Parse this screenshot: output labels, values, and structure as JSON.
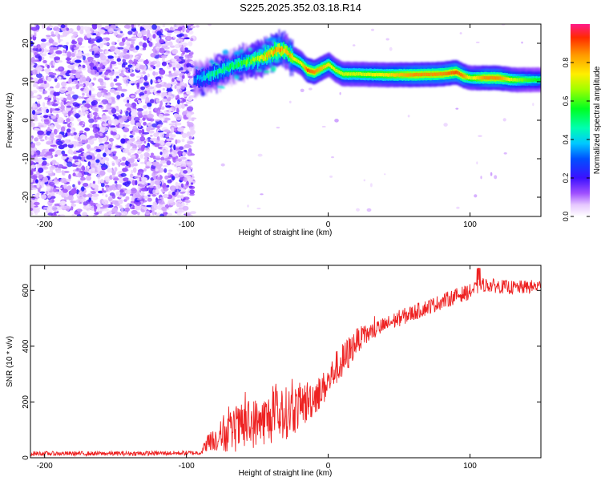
{
  "title": "S225.2025.352.03.18.R14",
  "chart_data": [
    {
      "type": "heatmap",
      "title": "S225.2025.352.03.18.R14",
      "xlabel": "Height of straight line (km)",
      "ylabel": "Frequency (Hz)",
      "xlim": [
        -210,
        150
      ],
      "ylim": [
        -25,
        25
      ],
      "xticks": [
        -200,
        -100,
        0,
        100
      ],
      "yticks": [
        -20,
        -10,
        0,
        10,
        20
      ],
      "grid": false,
      "colorbar": {
        "label": "Normalized spectral amplitude",
        "range": [
          0,
          1
        ],
        "ticks": [
          0.0,
          0.2,
          0.4,
          0.6,
          0.8
        ]
      },
      "noise_region": {
        "x_range": [
          -210,
          -95
        ],
        "y_range": [
          -25,
          25
        ],
        "amplitude_range": [
          0.0,
          0.25
        ]
      },
      "ridge": {
        "description": "frequency of peak spectral amplitude vs height",
        "x": [
          -95,
          -85,
          -75,
          -65,
          -55,
          -45,
          -35,
          -30,
          -25,
          -20,
          -15,
          -10,
          -5,
          0,
          5,
          10,
          20,
          40,
          60,
          80,
          90,
          95,
          100,
          110,
          120,
          130,
          140,
          150
        ],
        "y": [
          10.5,
          11.5,
          13.0,
          14.5,
          15.5,
          16.5,
          18.5,
          18.0,
          16.0,
          15.0,
          13.0,
          12.5,
          13.5,
          14.5,
          13.0,
          12.0,
          12.0,
          11.8,
          11.8,
          12.0,
          12.5,
          11.5,
          11.0,
          11.0,
          11.0,
          10.5,
          10.5,
          10.5
        ],
        "amplitude": [
          0.3,
          0.45,
          0.5,
          0.55,
          0.6,
          0.75,
          0.85,
          0.8,
          0.75,
          0.7,
          0.9,
          0.85,
          0.8,
          0.75,
          0.7,
          0.7,
          0.7,
          0.75,
          0.85,
          0.85,
          0.9,
          0.85,
          0.7,
          0.85,
          0.85,
          0.7,
          0.6,
          0.55
        ]
      }
    },
    {
      "type": "line",
      "xlabel": "Height of straight line (km)",
      "ylabel": "SNR (10 * v/v)",
      "xlim": [
        -210,
        150
      ],
      "ylim": [
        0,
        690
      ],
      "xticks": [
        -200,
        -100,
        0,
        100
      ],
      "yticks": [
        0,
        200,
        400,
        600
      ],
      "grid": false,
      "series": [
        {
          "name": "SNR",
          "color": "#ee2222",
          "x": [
            -210,
            -180,
            -150,
            -120,
            -100,
            -90,
            -85,
            -75,
            -65,
            -55,
            -45,
            -35,
            -25,
            -15,
            -5,
            0,
            5,
            10,
            15,
            20,
            30,
            40,
            50,
            60,
            70,
            80,
            90,
            100,
            105,
            110,
            120,
            130,
            140,
            150
          ],
          "y": [
            15,
            15,
            15,
            16,
            17,
            18,
            55,
            80,
            100,
            120,
            135,
            150,
            170,
            200,
            240,
            270,
            320,
            340,
            380,
            420,
            450,
            475,
            500,
            520,
            540,
            560,
            580,
            595,
            610,
            620,
            615,
            610,
            612,
            615
          ],
          "spread": [
            8,
            8,
            8,
            8,
            8,
            8,
            30,
            60,
            80,
            90,
            90,
            100,
            90,
            80,
            60,
            60,
            60,
            70,
            60,
            45,
            35,
            30,
            30,
            30,
            28,
            28,
            28,
            28,
            28,
            25,
            25,
            25,
            25,
            25
          ]
        }
      ]
    }
  ]
}
